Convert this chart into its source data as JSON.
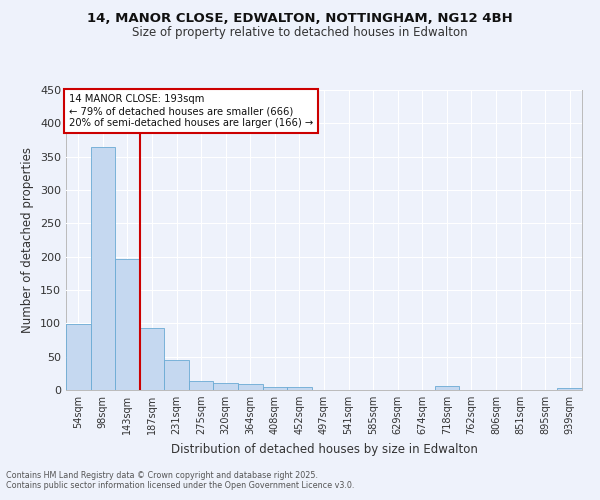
{
  "title": "14, MANOR CLOSE, EDWALTON, NOTTINGHAM, NG12 4BH",
  "subtitle": "Size of property relative to detached houses in Edwalton",
  "xlabel": "Distribution of detached houses by size in Edwalton",
  "ylabel": "Number of detached properties",
  "categories": [
    "54sqm",
    "98sqm",
    "143sqm",
    "187sqm",
    "231sqm",
    "275sqm",
    "320sqm",
    "364sqm",
    "408sqm",
    "452sqm",
    "497sqm",
    "541sqm",
    "585sqm",
    "629sqm",
    "674sqm",
    "718sqm",
    "762sqm",
    "806sqm",
    "851sqm",
    "895sqm",
    "939sqm"
  ],
  "values": [
    99,
    364,
    196,
    93,
    45,
    14,
    10,
    9,
    5,
    5,
    0,
    0,
    0,
    0,
    0,
    6,
    0,
    0,
    0,
    0,
    3
  ],
  "bar_color": "#c5d8f0",
  "bar_edge_color": "#6aaad4",
  "vline_index": 3,
  "vline_color": "#cc0000",
  "annotation_text": "14 MANOR CLOSE: 193sqm\n← 79% of detached houses are smaller (666)\n20% of semi-detached houses are larger (166) →",
  "annotation_box_color": "#cc0000",
  "ylim": [
    0,
    450
  ],
  "yticks": [
    0,
    50,
    100,
    150,
    200,
    250,
    300,
    350,
    400,
    450
  ],
  "bg_color": "#eef2fb",
  "grid_color": "#ffffff",
  "footer1": "Contains HM Land Registry data © Crown copyright and database right 2025.",
  "footer2": "Contains public sector information licensed under the Open Government Licence v3.0."
}
